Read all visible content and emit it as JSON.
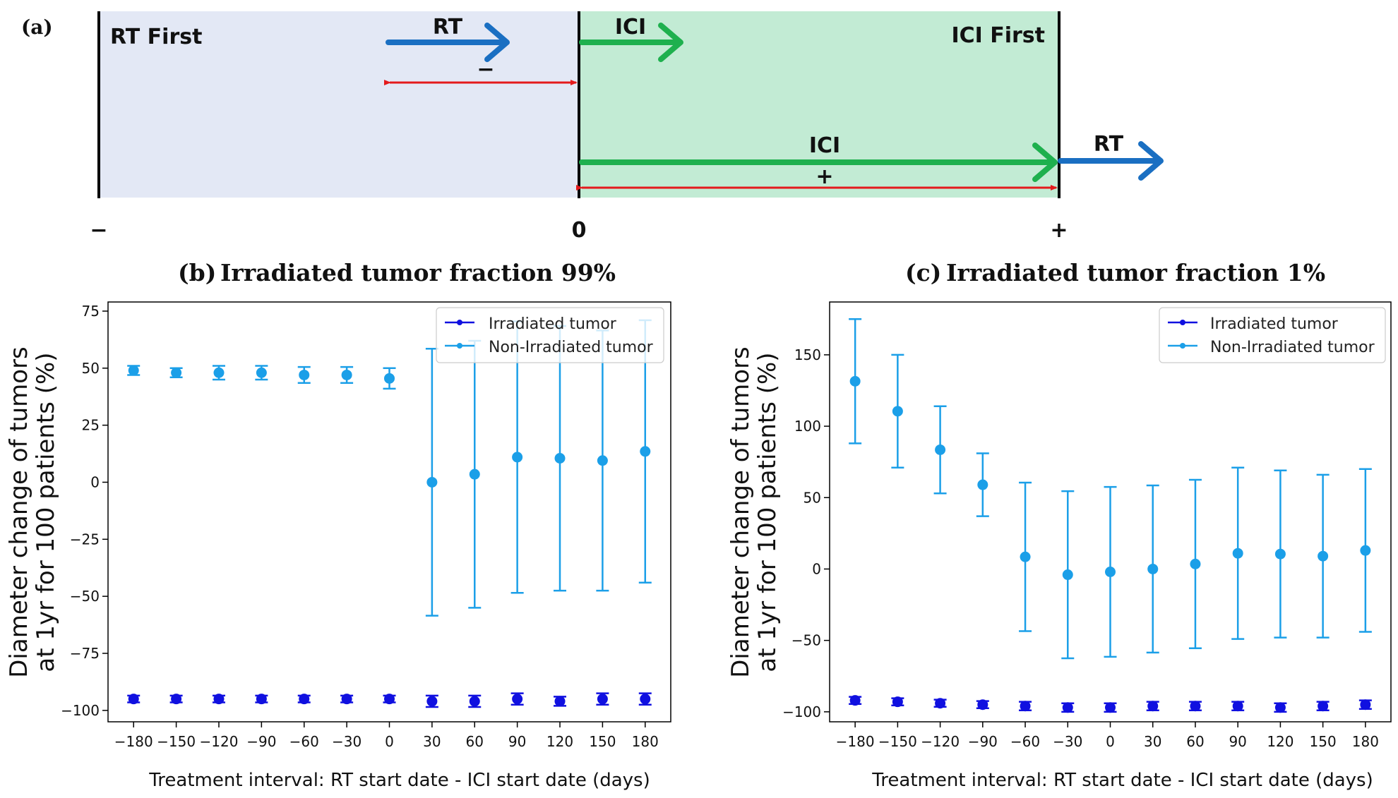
{
  "panel_a": {
    "label": "(a)",
    "rt_first": "RT First",
    "ici_first": "ICI First",
    "rt_top": "RT",
    "ici_top": "ICI",
    "minus_sign": "−",
    "ici_bottom": "ICI",
    "rt_bottom": "RT",
    "plus_sign": "+",
    "axis_minus": "−",
    "axis_zero": "0",
    "axis_plus": "+",
    "colors": {
      "rt_bg": "#e3e8f5",
      "ici_bg": "#c2ebd4",
      "rt_arrow": "#1a6fc2",
      "ici_arrow": "#1eb04e",
      "interval": "#e41a1c"
    }
  },
  "chart_data": [
    {
      "panel": "(b)",
      "type": "scatter",
      "title": "Irradiated tumor fraction 99%",
      "xlabel": "Treatment interval: RT start date - ICI start date (days)",
      "ylabel_line1": "Diameter change of tumors",
      "ylabel_line2": "at 1yr for 100 patients (%)",
      "x": [
        -180,
        -150,
        -120,
        -90,
        -60,
        -30,
        0,
        30,
        60,
        90,
        120,
        150,
        180
      ],
      "x_tick_labels": [
        "−180",
        "−150",
        "−120",
        "−90",
        "−60",
        "−30",
        "0",
        "30",
        "60",
        "90",
        "120",
        "150",
        "180"
      ],
      "ylim": [
        -105,
        79
      ],
      "y_ticks": [
        75,
        50,
        25,
        0,
        -25,
        -50,
        -75,
        -100
      ],
      "y_tick_labels": [
        "75",
        "50",
        "25",
        "0",
        "−25",
        "−50",
        "−75",
        "−100"
      ],
      "legend_position": "top-right",
      "series": [
        {
          "name": "Irradiated tumor",
          "color": "#1010e0",
          "values": [
            -95,
            -95,
            -95,
            -95,
            -95,
            -95,
            -95,
            -96,
            -96,
            -95,
            -96,
            -95,
            -95
          ],
          "err": [
            1.5,
            1.5,
            1.5,
            1.5,
            1.5,
            1.5,
            1.5,
            2.5,
            2.5,
            2.5,
            2.0,
            2.5,
            2.5
          ]
        },
        {
          "name": "Non-Irradiated tumor",
          "color": "#1b9fe8",
          "values": [
            49,
            48,
            48,
            48,
            47,
            47,
            45.5,
            0,
            3.5,
            11,
            10.5,
            9.5,
            13.5
          ],
          "err": [
            2,
            2,
            3,
            3,
            3.5,
            3.5,
            4.5,
            58.5,
            58.5,
            59.5,
            58,
            57,
            57.5
          ]
        }
      ]
    },
    {
      "panel": "(c)",
      "type": "scatter",
      "title": "Irradiated tumor fraction 1%",
      "xlabel": "Treatment interval: RT start date - ICI start date (days)",
      "ylabel_line1": "Diameter change of tumors",
      "ylabel_line2": "at 1yr for 100 patients (%)",
      "x": [
        -180,
        -150,
        -120,
        -90,
        -60,
        -30,
        0,
        30,
        60,
        90,
        120,
        150,
        180
      ],
      "x_tick_labels": [
        "−180",
        "−150",
        "−120",
        "−90",
        "−60",
        "−30",
        "0",
        "30",
        "60",
        "90",
        "120",
        "150",
        "180"
      ],
      "ylim": [
        -107,
        187
      ],
      "y_ticks": [
        150,
        100,
        50,
        0,
        -50,
        -100
      ],
      "y_tick_labels": [
        "150",
        "100",
        "50",
        "0",
        "−50",
        "−100"
      ],
      "legend_position": "top-right",
      "series": [
        {
          "name": "Irradiated tumor",
          "color": "#1010e0",
          "values": [
            -92,
            -93,
            -94,
            -95,
            -96,
            -97,
            -97,
            -96,
            -96,
            -96,
            -97,
            -96,
            -95
          ],
          "err": [
            2.5,
            2.5,
            2.5,
            2.5,
            3,
            3,
            3,
            3,
            3,
            3,
            3,
            3,
            3
          ]
        },
        {
          "name": "Non-Irradiated tumor",
          "color": "#1b9fe8",
          "values": [
            131.5,
            110.5,
            83.5,
            59,
            8.5,
            -4,
            -2,
            0,
            3.5,
            11,
            10.5,
            9,
            13
          ],
          "err": [
            43.5,
            39.5,
            30.5,
            22,
            52,
            58.5,
            59.5,
            58.5,
            59,
            60,
            58.5,
            57,
            57
          ]
        }
      ]
    }
  ]
}
